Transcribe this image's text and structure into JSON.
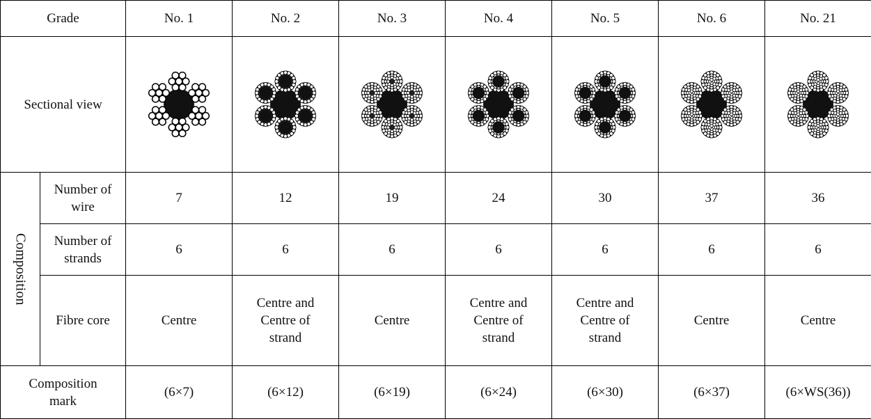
{
  "table": {
    "header": [
      "Grade",
      "No. 1",
      "No. 2",
      "No. 3",
      "No. 4",
      "No. 5",
      "No. 6",
      "No. 21"
    ],
    "sectional_label": "Sectional view",
    "group_label": "Composition",
    "rows": [
      {
        "label": "Number of wire",
        "cells": [
          7,
          12,
          19,
          24,
          30,
          37,
          36
        ]
      },
      {
        "label": "Number of strands",
        "cells": [
          6,
          6,
          6,
          6,
          6,
          6,
          6
        ]
      },
      {
        "label": "Fibre core",
        "cells": [
          "Centre",
          "Centre and Centre of strand",
          "Centre",
          "Centre and Centre of strand",
          "Centre and Centre of strand",
          "Centre",
          "Centre"
        ]
      }
    ],
    "mark_row": {
      "label": "Composition mark",
      "cells": [
        "(6×7)",
        "(6×12)",
        "(6×19)",
        "(6×24)",
        "(6×30)",
        "(6×37)",
        "(6×WS(36))"
      ]
    }
  }
}
